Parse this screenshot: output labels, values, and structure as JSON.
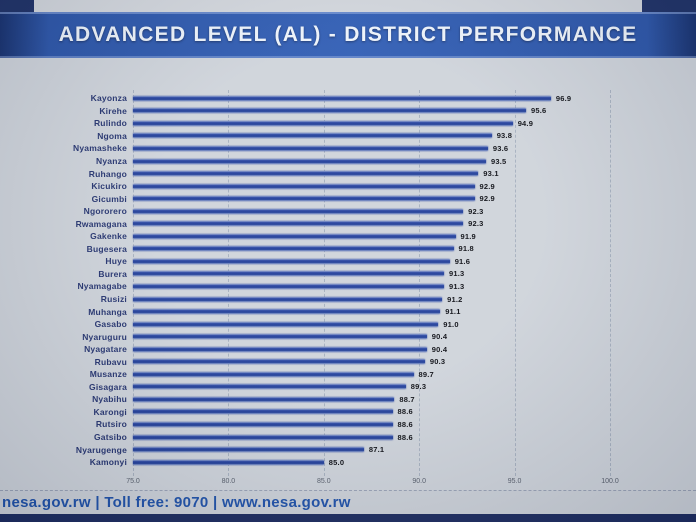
{
  "header": {
    "title": "ADVANCED LEVEL (AL) - DISTRICT PERFORMANCE"
  },
  "footer": {
    "text": "nesa.gov.rw  |  Toll free: 9070  |  www.nesa.gov.rw"
  },
  "colors": {
    "banner_blue": "#2a54a8",
    "banner_edge_navy": "#16306e",
    "bar_blue": "#24419f",
    "label_navy": "#24336f",
    "value_black": "#0a0c12",
    "footer_blue": "#1d50a8",
    "background_grey": "#ccd1d8",
    "bottom_strip_navy": "#1b2a5e"
  },
  "chart_data": {
    "type": "bar",
    "orientation": "horizontal",
    "title": "ADVANCED LEVEL (AL) - DISTRICT PERFORMANCE",
    "sort": "descending",
    "grid": "vertical-dashed",
    "value_labels_shown": true,
    "xlim": [
      75.0,
      100.0
    ],
    "x_ticks": [
      75.0,
      80.0,
      85.0,
      90.0,
      95.0,
      100.0
    ],
    "x_tick_labels": [
      "75.0",
      "80.0",
      "85.0",
      "90.0",
      "95.0",
      "100.0"
    ],
    "categories": [
      "Kayonza",
      "Kirehe",
      "Rulindo",
      "Ngoma",
      "Nyamasheke",
      "Nyanza",
      "Ruhango",
      "Kicukiro",
      "Gicumbi",
      "Ngororero",
      "Rwamagana",
      "Gakenke",
      "Bugesera",
      "Huye",
      "Burera",
      "Nyamagabe",
      "Rusizi",
      "Muhanga",
      "Gasabo",
      "Nyaruguru",
      "Nyagatare",
      "Rubavu",
      "Musanze",
      "Gisagara",
      "Nyabihu",
      "Karongi",
      "Rutsiro",
      "Gatsibo",
      "Nyarugenge",
      "Kamonyi"
    ],
    "values": [
      96.9,
      95.6,
      94.9,
      93.8,
      93.6,
      93.5,
      93.1,
      92.9,
      92.9,
      92.3,
      92.3,
      91.9,
      91.8,
      91.6,
      91.3,
      91.3,
      91.2,
      91.1,
      91.0,
      90.4,
      90.4,
      90.3,
      89.7,
      89.3,
      88.7,
      88.6,
      88.6,
      88.6,
      87.1,
      85.0
    ]
  }
}
